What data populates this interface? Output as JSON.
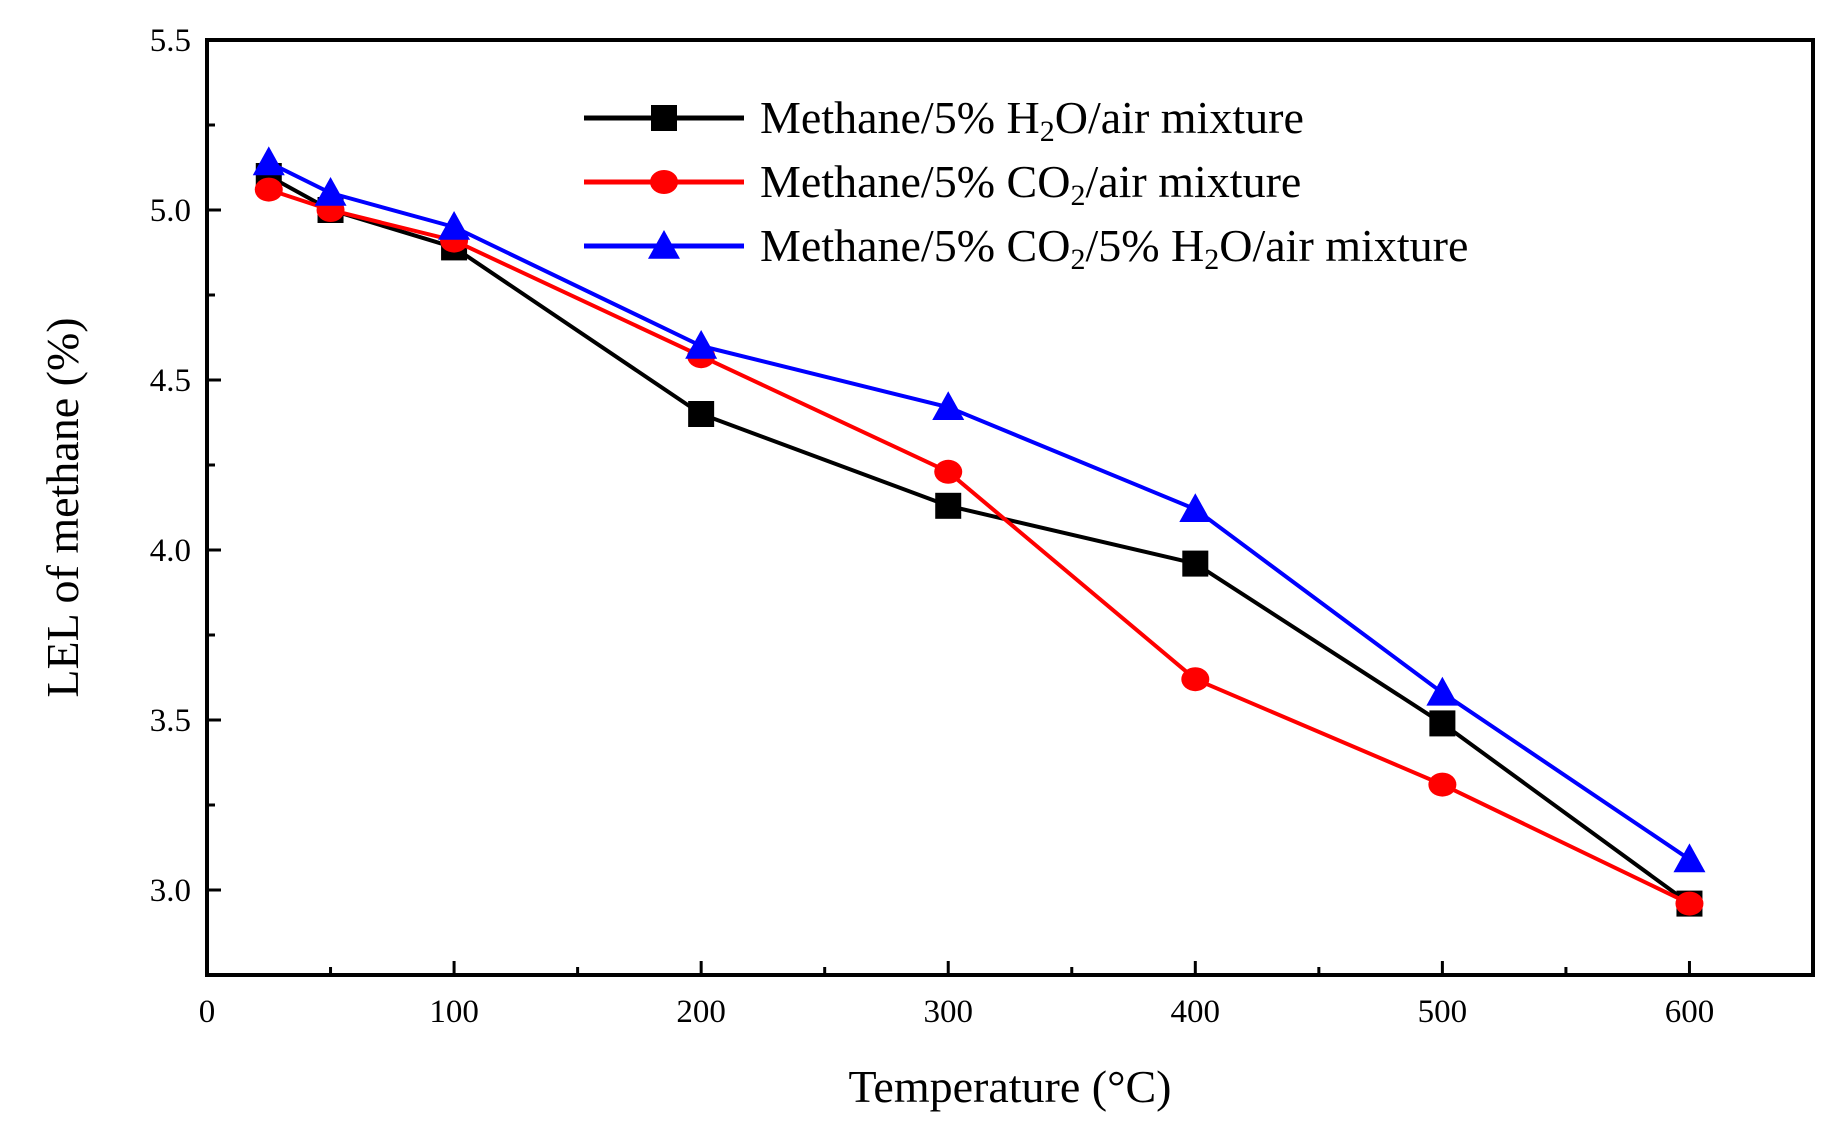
{
  "chart_data": {
    "type": "line",
    "title": "",
    "xlabel": "Temperature (°C)",
    "ylabel": "LEL of methane (%)",
    "xlim": [
      0,
      650
    ],
    "ylim": [
      2.75,
      5.5
    ],
    "x_ticks": [
      0,
      100,
      200,
      300,
      400,
      500,
      600
    ],
    "x_tick_labels": [
      "0",
      "100",
      "200",
      "300",
      "400",
      "500",
      "600"
    ],
    "y_ticks": [
      3.0,
      3.5,
      4.0,
      4.5,
      5.0,
      5.5
    ],
    "y_tick_labels": [
      "3.0",
      "3.5",
      "4.0",
      "4.5",
      "5.0",
      "5.5"
    ],
    "legend_position": "top-right",
    "series": [
      {
        "name": "Methane/5% H2O/air mixture",
        "legend_parts": [
          {
            "text": "Methane/5% H",
            "sub": false
          },
          {
            "text": "2",
            "sub": true
          },
          {
            "text": "O/air mixture",
            "sub": false
          }
        ],
        "color": "#000000",
        "marker": "square",
        "x": [
          25,
          50,
          100,
          200,
          300,
          400,
          500,
          600
        ],
        "y": [
          5.1,
          5.0,
          4.89,
          4.4,
          4.13,
          3.96,
          3.49,
          2.96
        ]
      },
      {
        "name": "Methane/5% CO2/air mixture",
        "legend_parts": [
          {
            "text": "Methane/5% CO",
            "sub": false
          },
          {
            "text": "2",
            "sub": true
          },
          {
            "text": "/air mixture",
            "sub": false
          }
        ],
        "color": "#ff0000",
        "marker": "circle",
        "x": [
          25,
          50,
          100,
          200,
          300,
          400,
          500,
          600
        ],
        "y": [
          5.06,
          5.0,
          4.91,
          4.57,
          4.23,
          3.62,
          3.31,
          2.96
        ]
      },
      {
        "name": "Methane/5% CO2/5% H2O/air mixture",
        "legend_parts": [
          {
            "text": "Methane/5% CO",
            "sub": false
          },
          {
            "text": "2",
            "sub": true
          },
          {
            "text": "/5% H",
            "sub": false
          },
          {
            "text": "2",
            "sub": true
          },
          {
            "text": "O/air mixture",
            "sub": false
          }
        ],
        "color": "#0000ff",
        "marker": "triangle",
        "x": [
          25,
          50,
          100,
          200,
          300,
          400,
          500,
          600
        ],
        "y": [
          5.14,
          5.05,
          4.95,
          4.6,
          4.42,
          4.12,
          3.58,
          3.09
        ]
      }
    ]
  }
}
